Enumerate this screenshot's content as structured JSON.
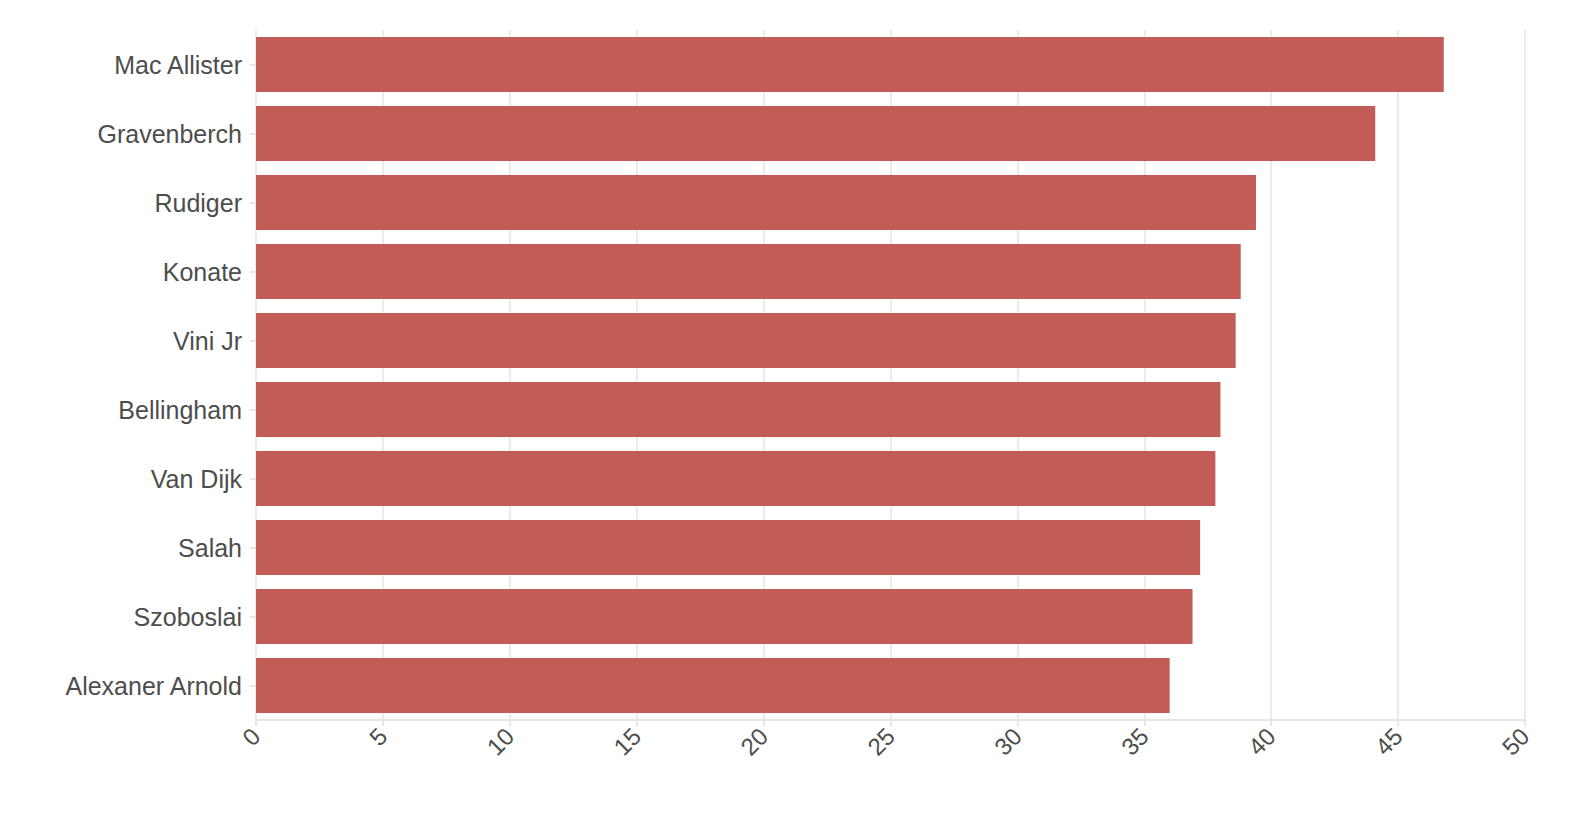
{
  "chart_data": {
    "type": "bar",
    "orientation": "horizontal",
    "categories": [
      "Mac Allister",
      "Gravenberch",
      "Rudiger",
      "Konate",
      "Vini Jr",
      "Bellingham",
      "Van Dijk",
      "Salah",
      "Szoboslai",
      "Alexaner Arnold"
    ],
    "values": [
      46.8,
      44.1,
      39.4,
      38.8,
      38.6,
      38.0,
      37.8,
      37.2,
      36.9,
      36.0
    ],
    "color": "#bf5851",
    "xlim": [
      0,
      50
    ],
    "xticks": [
      0,
      5,
      10,
      15,
      20,
      25,
      30,
      35,
      40,
      45,
      50
    ],
    "grid": true
  }
}
